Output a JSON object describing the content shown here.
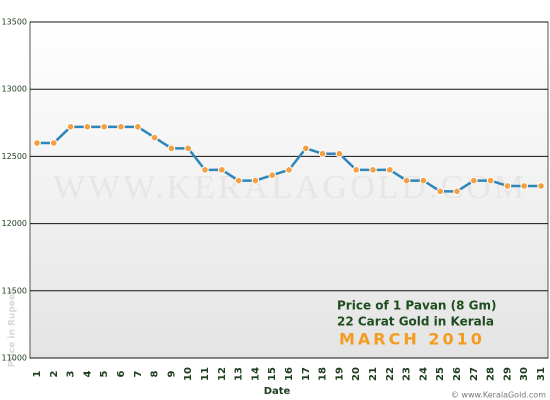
{
  "chart_data": {
    "type": "line",
    "annotation_lines": [
      "Price of 1 Pavan (8 Gm)",
      "22 Carat Gold in Kerala"
    ],
    "period": "MARCH 2010",
    "x_label": "Date",
    "y_label": "Price in Rupees",
    "watermark": "WWW.KERALAGOLD.COM",
    "copyright": "© www.KeralaGold.com",
    "categories": [
      "1",
      "2",
      "3",
      "4",
      "5",
      "6",
      "7",
      "8",
      "9",
      "10",
      "11",
      "12",
      "13",
      "14",
      "15",
      "16",
      "17",
      "18",
      "19",
      "20",
      "21",
      "22",
      "23",
      "24",
      "25",
      "26",
      "27",
      "28",
      "29",
      "30",
      "31"
    ],
    "values": [
      12600,
      12600,
      12720,
      12720,
      12720,
      12720,
      12720,
      12640,
      12560,
      12560,
      12400,
      12400,
      12320,
      12320,
      12360,
      12400,
      12560,
      12520,
      12520,
      12400,
      12400,
      12400,
      12320,
      12320,
      12240,
      12240,
      12320,
      12320,
      12280,
      12280,
      12280
    ],
    "color": "#2f86b8",
    "marker_color": "#f5a040",
    "ylim": [
      11000,
      13500
    ],
    "yticks": [
      11000,
      11500,
      12000,
      12500,
      13000,
      13500
    ],
    "grid": true
  }
}
